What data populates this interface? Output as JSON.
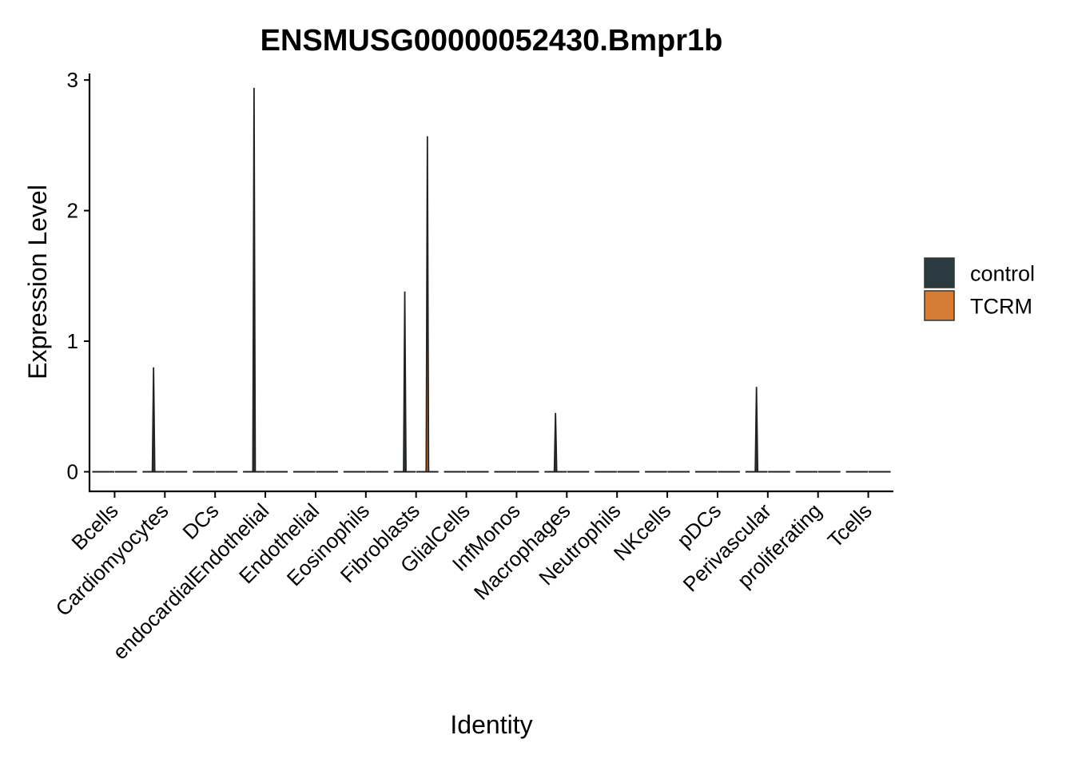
{
  "chart_data": {
    "type": "violin",
    "title": "ENSMUSG00000052430.Bmpr1b",
    "xlabel": "Identity",
    "ylabel": "Expression Level",
    "ylim": [
      -0.15,
      3.05
    ],
    "yticks": [
      0,
      1,
      2,
      3
    ],
    "categories": [
      "Bcells",
      "Cardiomyocytes",
      "DCs",
      "endocardialEndothelial",
      "Endothelial",
      "Eosinophils",
      "Fibroblasts",
      "GlialCells",
      "InfMonos",
      "Macrophages",
      "Neutrophils",
      "NKcells",
      "pDCs",
      "Perivascular",
      "proliferating",
      "Tcells"
    ],
    "series": [
      {
        "name": "control",
        "color": "#2b3a40",
        "max_values": [
          0,
          0.8,
          0,
          2.94,
          0,
          0,
          1.38,
          0,
          0,
          0.45,
          0,
          0,
          0,
          0.65,
          0,
          0
        ]
      },
      {
        "name": "TCRM",
        "color": "#d67c35",
        "max_values": [
          0,
          0,
          0,
          0,
          0,
          0,
          2.57,
          0,
          0,
          0,
          0,
          0,
          0,
          0,
          0,
          0
        ]
      }
    ],
    "grid": false,
    "legend_position": "right"
  }
}
